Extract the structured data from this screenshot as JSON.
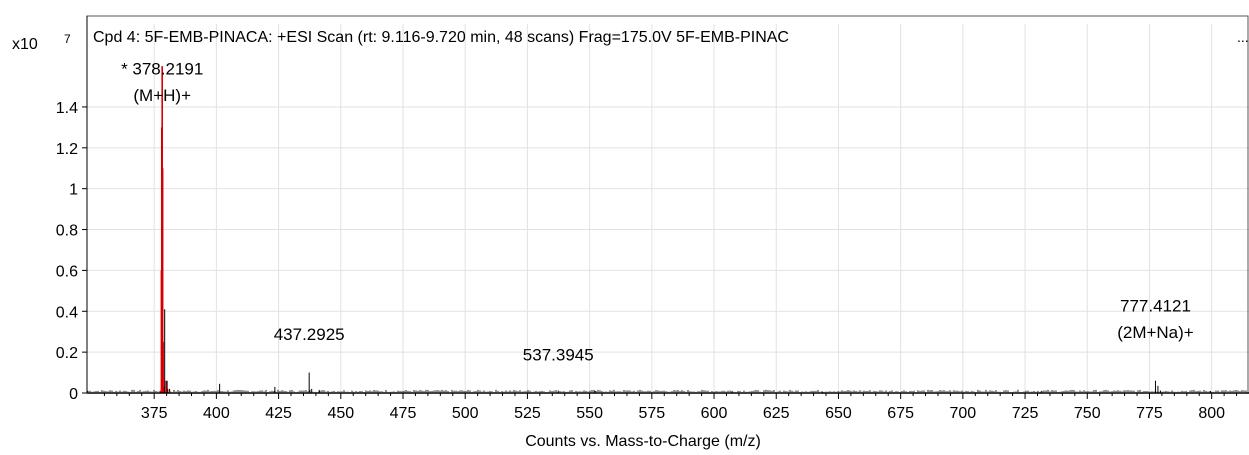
{
  "chart_data": {
    "type": "line",
    "title": "Cpd 4: 5F-EMB-PINACA: +ESI Scan (rt: 9.116-9.720 min, 48 scans) Frag=175.0V 5F-EMB-PINAC",
    "title_overflow": "...",
    "scale_prefix": "x10",
    "scale_exponent": "7",
    "xlabel": "Counts vs. Mass-to-Charge (m/z)",
    "xlim": [
      348,
      815
    ],
    "ylim": [
      0,
      1.62
    ],
    "x_ticks": [
      375,
      400,
      425,
      450,
      475,
      500,
      525,
      550,
      575,
      600,
      625,
      650,
      675,
      700,
      725,
      750,
      775,
      800
    ],
    "y_ticks": [
      {
        "value": 0,
        "label": "0"
      },
      {
        "value": 0.2,
        "label": "0.2"
      },
      {
        "value": 0.4,
        "label": "0.4"
      },
      {
        "value": 0.6,
        "label": "0.6"
      },
      {
        "value": 0.8,
        "label": "0.8"
      },
      {
        "value": 1.0,
        "label": "1"
      },
      {
        "value": 1.2,
        "label": "1.2"
      },
      {
        "value": 1.4,
        "label": "1.4"
      }
    ],
    "grid": true,
    "series": [
      {
        "color": "#d40000",
        "peaks": [
          [
            377.6,
            0.01
          ],
          [
            377.9,
            0.6
          ],
          [
            378.05,
            1.3
          ],
          [
            378.22,
            1.6
          ],
          [
            378.4,
            1.1
          ],
          [
            378.6,
            0.25
          ],
          [
            378.8,
            0.03
          ],
          [
            379.8,
            0.06
          ],
          [
            380.4,
            0.02
          ]
        ]
      },
      {
        "color": "#000000",
        "peaks": [
          [
            379.22,
            0.41
          ],
          [
            380.2,
            0.06
          ],
          [
            381.2,
            0.02
          ],
          [
            401.3,
            0.045
          ],
          [
            423.5,
            0.03
          ],
          [
            437.29,
            0.1
          ],
          [
            438.3,
            0.02
          ],
          [
            441.3,
            0.015
          ],
          [
            537.39,
            0.012
          ],
          [
            552.2,
            0.01
          ],
          [
            607.3,
            0.008
          ],
          [
            643.6,
            0.006
          ],
          [
            731.5,
            0.008
          ],
          [
            777.41,
            0.06
          ],
          [
            778.4,
            0.035
          ],
          [
            779.4,
            0.012
          ],
          [
            799.5,
            0.01
          ]
        ]
      }
    ],
    "annotations": [
      {
        "x": 378.2191,
        "y": 1.56,
        "text": "* 378.2191"
      },
      {
        "x": 378.2191,
        "y": 1.43,
        "text": "(M+H)+"
      },
      {
        "x": 437.2925,
        "y": 0.26,
        "text": "437.2925"
      },
      {
        "x": 537.3945,
        "y": 0.16,
        "text": "537.3945"
      },
      {
        "x": 777.4121,
        "y": 0.4,
        "text": "777.4121"
      },
      {
        "x": 777.4121,
        "y": 0.27,
        "text": "(2M+Na)+"
      }
    ]
  }
}
